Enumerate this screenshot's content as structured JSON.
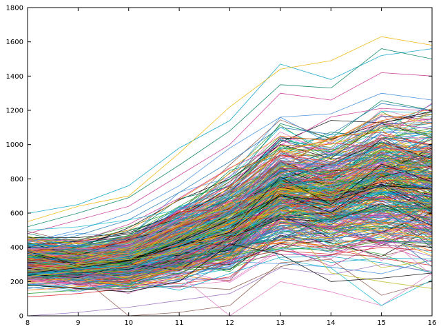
{
  "chart_data": {
    "type": "line",
    "title": "",
    "xlabel": "",
    "ylabel": "",
    "x": [
      8,
      9,
      10,
      11,
      12,
      13,
      14,
      15,
      16
    ],
    "xlim": [
      8,
      16
    ],
    "ylim": [
      0,
      1800
    ],
    "x_ticks": [
      8,
      9,
      10,
      11,
      12,
      13,
      14,
      15,
      16
    ],
    "y_ticks": [
      0,
      200,
      400,
      600,
      800,
      1000,
      1200,
      1400,
      1600,
      1800
    ],
    "grid": false,
    "legend": "none",
    "series_count": 400,
    "palette": [
      "#1f77b4",
      "#ff7f0e",
      "#2ca02c",
      "#d62728",
      "#9467bd",
      "#8c564b",
      "#e377c2",
      "#17becf",
      "#bcbd22",
      "#000000",
      "#00a0c8",
      "#f0b400",
      "#008060",
      "#c83296",
      "#3c8cdc"
    ],
    "series": [
      {
        "values": [
          598,
          650,
          760,
          980,
          1140,
          1470,
          1380,
          1520,
          1560
        ]
      },
      {
        "values": [
          550,
          640,
          700,
          950,
          1220,
          1440,
          1490,
          1630,
          1580
        ]
      },
      {
        "values": [
          520,
          600,
          690,
          880,
          1080,
          1350,
          1330,
          1560,
          1500
        ]
      },
      {
        "values": [
          480,
          560,
          640,
          820,
          1000,
          1300,
          1260,
          1420,
          1400
        ]
      },
      {
        "values": [
          430,
          500,
          600,
          760,
          980,
          1160,
          1180,
          1300,
          1260
        ]
      },
      {
        "values": [
          400,
          470,
          560,
          720,
          900,
          1100,
          1060,
          1240,
          1200
        ]
      },
      {
        "values": [
          360,
          430,
          500,
          680,
          860,
          1050,
          1020,
          1180,
          1120
        ]
      },
      {
        "values": [
          340,
          400,
          470,
          640,
          800,
          980,
          960,
          1100,
          1060
        ]
      },
      {
        "values": [
          320,
          370,
          440,
          600,
          760,
          940,
          900,
          1040,
          1000
        ]
      },
      {
        "values": [
          300,
          350,
          410,
          560,
          720,
          900,
          860,
          980,
          960
        ]
      },
      {
        "values": [
          290,
          330,
          390,
          520,
          680,
          860,
          820,
          940,
          900
        ]
      },
      {
        "values": [
          280,
          310,
          370,
          500,
          640,
          820,
          780,
          900,
          860
        ]
      },
      {
        "values": [
          270,
          300,
          350,
          470,
          600,
          780,
          740,
          860,
          820
        ]
      },
      {
        "values": [
          260,
          290,
          330,
          450,
          580,
          740,
          700,
          800,
          780
        ]
      },
      {
        "values": [
          250,
          280,
          320,
          430,
          560,
          700,
          670,
          760,
          740
        ]
      },
      {
        "values": [
          240,
          270,
          300,
          410,
          530,
          660,
          640,
          720,
          700
        ]
      },
      {
        "values": [
          230,
          260,
          290,
          390,
          500,
          620,
          600,
          680,
          660
        ]
      },
      {
        "values": [
          220,
          250,
          280,
          370,
          480,
          580,
          560,
          640,
          620
        ]
      },
      {
        "values": [
          200,
          230,
          260,
          340,
          450,
          540,
          520,
          600,
          580
        ]
      },
      {
        "values": [
          180,
          210,
          240,
          310,
          420,
          500,
          480,
          560,
          540
        ]
      },
      {
        "values": [
          160,
          190,
          220,
          290,
          400,
          460,
          440,
          520,
          500
        ]
      },
      {
        "values": [
          150,
          170,
          200,
          270,
          370,
          430,
          410,
          480,
          460
        ]
      },
      {
        "values": [
          130,
          150,
          180,
          250,
          350,
          400,
          380,
          440,
          420
        ]
      },
      {
        "values": [
          110,
          130,
          160,
          230,
          330,
          380,
          360,
          400,
          380
        ]
      },
      {
        "values": [
          0,
          20,
          50,
          90,
          130,
          280,
          240,
          300,
          260
        ]
      },
      {
        "values": [
          220,
          240,
          0,
          20,
          60,
          310,
          330,
          120,
          200
        ]
      },
      {
        "values": [
          210,
          190,
          130,
          240,
          0,
          200,
          140,
          60,
          250
        ]
      },
      {
        "values": [
          500,
          520,
          560,
          620,
          700,
          330,
          280,
          60,
          210
        ]
      },
      {
        "values": [
          270,
          300,
          330,
          370,
          560,
          600,
          250,
          200,
          160
        ]
      },
      {
        "values": [
          180,
          160,
          140,
          200,
          420,
          360,
          200,
          220,
          250
        ]
      }
    ]
  }
}
